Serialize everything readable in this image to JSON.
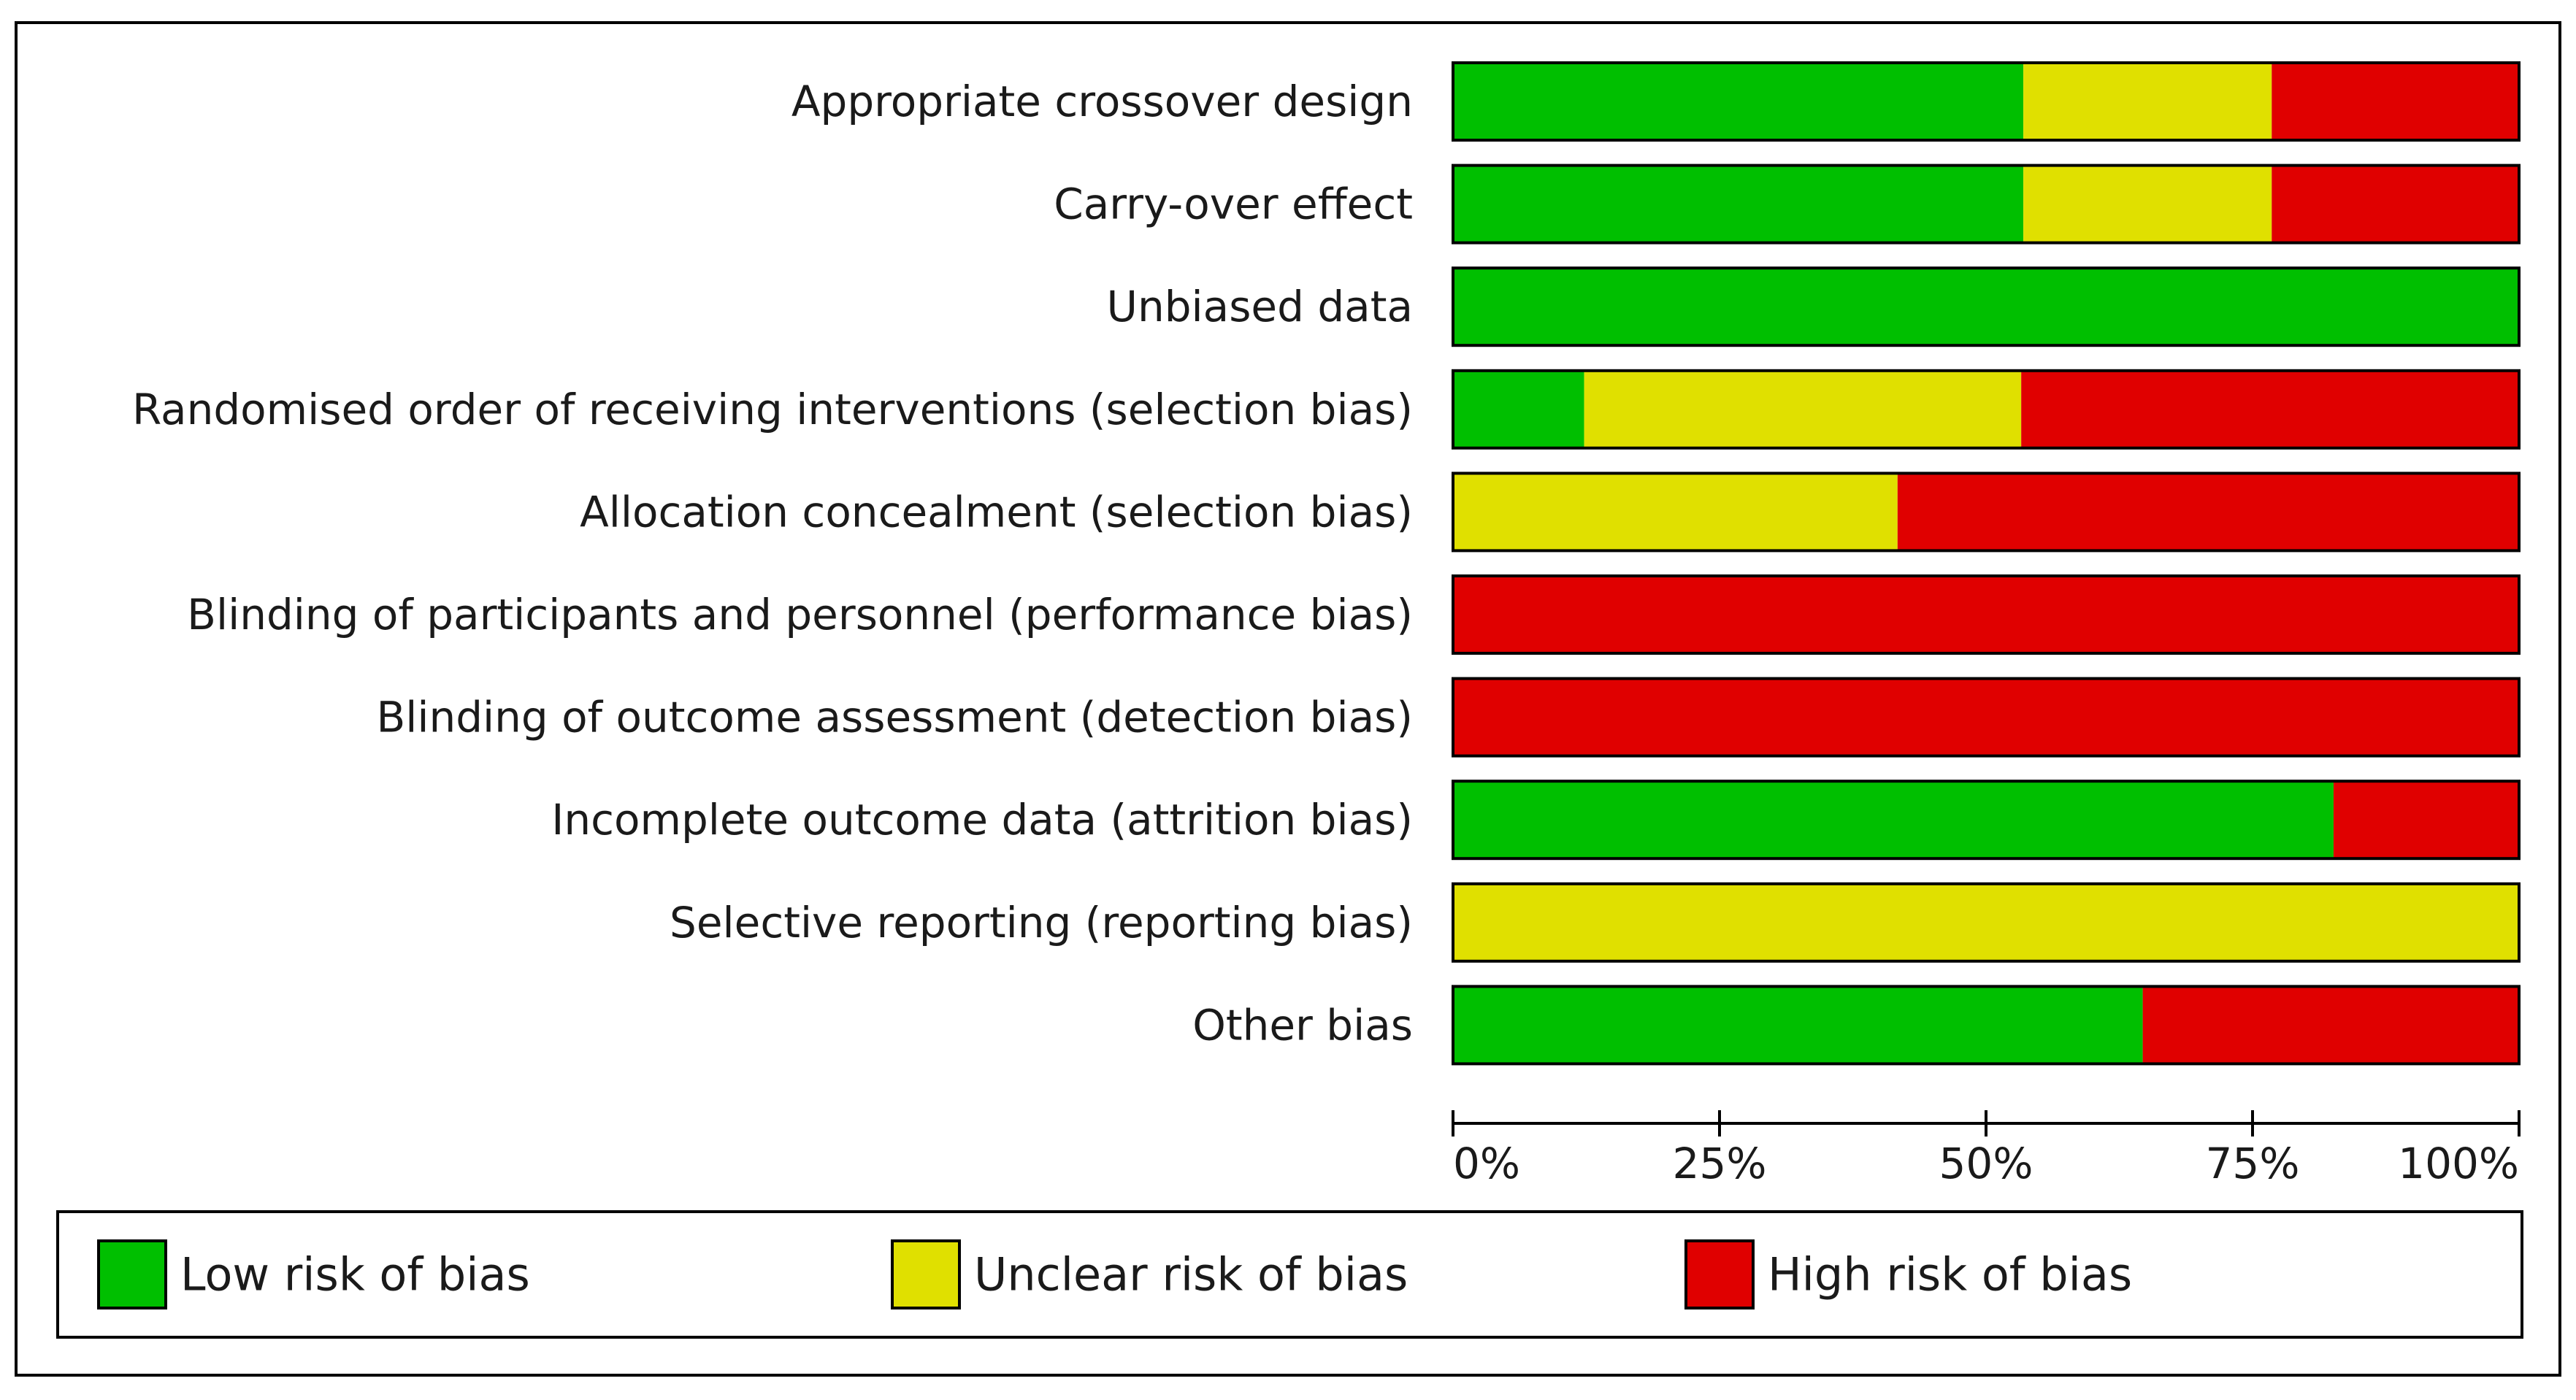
{
  "chart_data": {
    "type": "bar",
    "orientation": "horizontal",
    "stacked": true,
    "normalized_percent": true,
    "categories": [
      "Appropriate crossover design",
      "Carry-over effect",
      "Unbiased data",
      "Randomised order of receiving interventions (selection bias)",
      "Allocation concealment (selection bias)",
      "Blinding of participants and personnel (performance bias)",
      "Blinding of outcome assessment (detection bias)",
      "Incomplete outcome data (attrition bias)",
      "Selective reporting (reporting bias)",
      "Other bias"
    ],
    "series": [
      {
        "name": "Low risk of bias",
        "color": "#00bf00",
        "values": [
          53.5,
          53.5,
          100,
          12.3,
          0,
          0,
          0,
          82.6,
          0,
          64.7
        ]
      },
      {
        "name": "Unclear risk of bias",
        "color": "#e0e000",
        "values": [
          23.3,
          23.3,
          0,
          41.0,
          41.7,
          0,
          0,
          0,
          100,
          0
        ]
      },
      {
        "name": "High risk of bias",
        "color": "#e00000",
        "values": [
          23.2,
          23.2,
          0,
          46.7,
          58.3,
          100,
          100,
          17.4,
          0,
          35.3
        ]
      }
    ],
    "xaxis": {
      "ticks": [
        0,
        25,
        50,
        75,
        100
      ],
      "tick_labels": [
        "0%",
        "25%",
        "50%",
        "75%",
        "100%"
      ],
      "xlim": [
        0,
        100
      ]
    },
    "title": "",
    "xlabel": "",
    "ylabel": "",
    "grid": false,
    "legend_position": "bottom"
  }
}
